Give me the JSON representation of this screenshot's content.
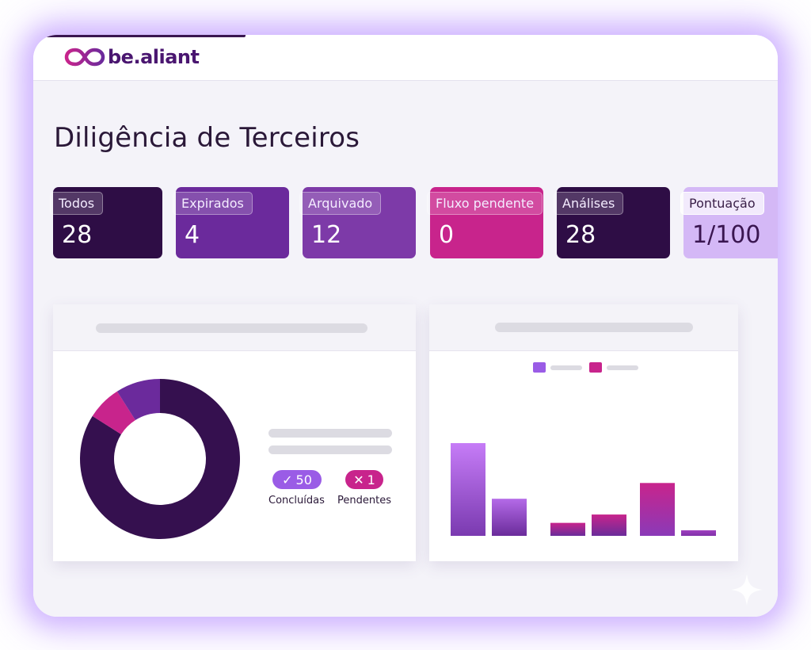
{
  "header": {
    "brand": "be.aliant",
    "logo_icon": "infinity-logo-icon"
  },
  "page": {
    "title": "Diligência de Terceiros"
  },
  "stats": [
    {
      "label": "Todos",
      "value": "28",
      "color": "#2e0d45"
    },
    {
      "label": "Expirados",
      "value": "4",
      "color": "#6b2a9c"
    },
    {
      "label": "Arquivado",
      "value": "12",
      "color": "#7d3aa8"
    },
    {
      "label": "Fluxo pendente",
      "value": "0",
      "color": "#c8248c"
    },
    {
      "label": "Análises",
      "value": "28",
      "color": "#2e0d45"
    },
    {
      "label": "Pontuação",
      "value": "1/100",
      "color": "#d4b8f6"
    }
  ],
  "donut_panel": {
    "badges": [
      {
        "icon": "check-icon",
        "value": "50",
        "caption": "Concluídas",
        "color": "#9a5ce6"
      },
      {
        "icon": "x-icon",
        "value": "1",
        "caption": "Pendentes",
        "color": "#c8248c"
      }
    ]
  },
  "chart_data": [
    {
      "type": "pie",
      "title": "",
      "slices": [
        {
          "value": 84,
          "color": "#35104f"
        },
        {
          "value": 7,
          "color": "#c8248c"
        },
        {
          "value": 9,
          "color": "#6b2a9c"
        }
      ]
    },
    {
      "type": "bar",
      "title": "",
      "legend": "top",
      "legend_colors": [
        "#9a5ce6",
        "#c8248c"
      ],
      "bars": [
        {
          "value": 100,
          "color_top": "#c67cf7",
          "color_bottom": "#7a3ab0"
        },
        {
          "value": 40,
          "color_top": "#b46ae8",
          "color_bottom": "#6a2c9a"
        },
        {
          "value": 14,
          "color_top": "#c8248c",
          "color_bottom": "#6a2c9a"
        },
        {
          "value": 23,
          "color_top": "#c8248c",
          "color_bottom": "#6a2c9a"
        },
        {
          "value": 57,
          "color_top": "#c8248c",
          "color_bottom": "#8a3ab8"
        },
        {
          "value": 6,
          "color_top": "#a040c0",
          "color_bottom": "#8030a8"
        }
      ]
    }
  ]
}
